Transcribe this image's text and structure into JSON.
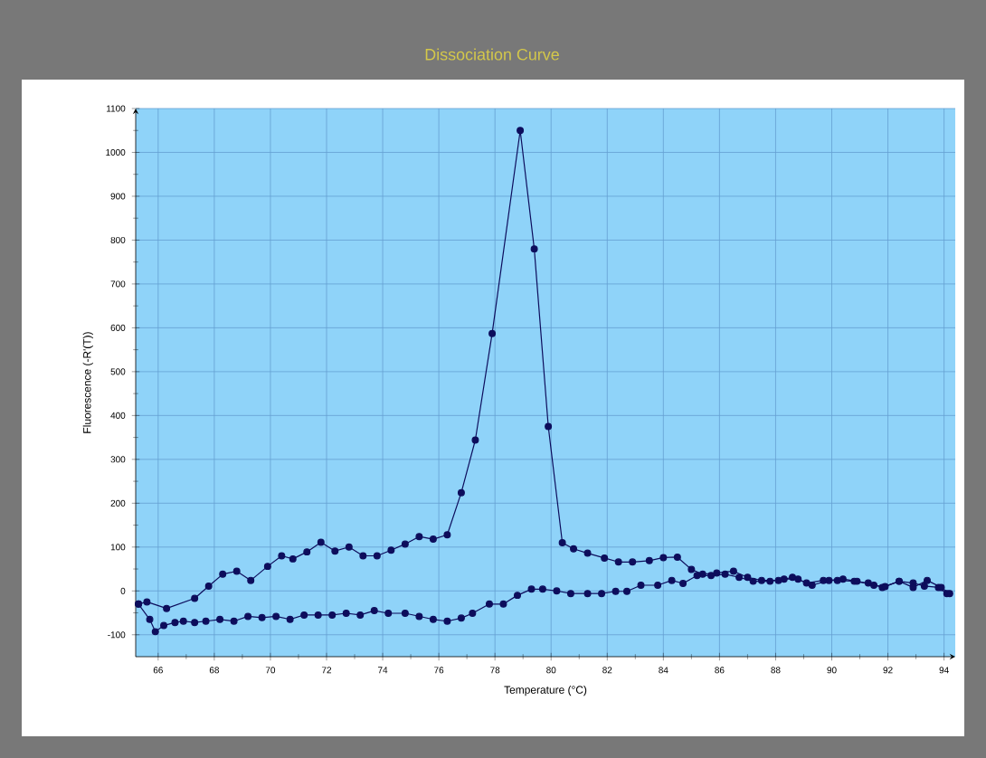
{
  "chart_data": {
    "type": "line",
    "title": "Dissociation Curve",
    "xlabel": "Temperature (°C)",
    "ylabel": "Fluorescence (-R'(T))",
    "series": [
      {
        "color": "#0d0d5c",
        "x": [
          65.3,
          65.6,
          66.3,
          67.3,
          67.8,
          68.3,
          68.8,
          69.3,
          69.9,
          70.4,
          70.8,
          71.3,
          71.8,
          72.3,
          72.8,
          73.3,
          73.8,
          74.3,
          74.8,
          75.3,
          75.8,
          76.3,
          76.8,
          77.3,
          77.9,
          78.9,
          79.4,
          79.9,
          80.4,
          80.8,
          81.3,
          81.9,
          82.4,
          82.9,
          83.5,
          84.0,
          84.5,
          85.0,
          85.4,
          85.9,
          86.5,
          87.0,
          87.5,
          88.1,
          88.6,
          89.1,
          89.7,
          90.2,
          90.8,
          91.3,
          91.8,
          92.4,
          92.9,
          93.3,
          93.8,
          94.1
        ],
        "values": [
          -30,
          -25,
          -40,
          -17,
          11,
          38,
          45,
          24,
          56,
          80,
          73,
          89,
          111,
          91,
          100,
          80,
          80,
          93,
          107,
          124,
          118,
          128,
          224,
          344,
          587,
          1050,
          780,
          375,
          110,
          96,
          86,
          75,
          66,
          66,
          69,
          76,
          77,
          49,
          38,
          41,
          45,
          31,
          24,
          24,
          31,
          18,
          24,
          24,
          22,
          18,
          8,
          22,
          18,
          11,
          8,
          -6
        ]
      },
      {
        "color": "#0d0d5c",
        "x": [
          65.3,
          65.7,
          65.9,
          66.2,
          66.6,
          66.9,
          67.3,
          67.7,
          68.2,
          68.7,
          69.2,
          69.7,
          70.2,
          70.7,
          71.2,
          71.7,
          72.2,
          72.7,
          73.2,
          73.7,
          74.2,
          74.8,
          75.3,
          75.8,
          76.3,
          76.8,
          77.2,
          77.8,
          78.3,
          78.8,
          79.3,
          79.7,
          80.2,
          80.7,
          81.3,
          81.8,
          82.3,
          82.7,
          83.2,
          83.8,
          84.3,
          84.7,
          85.2,
          85.7,
          86.2,
          86.7,
          87.2,
          87.8,
          88.3,
          88.8,
          89.3,
          89.9,
          90.4,
          90.9,
          91.5,
          91.9,
          92.4,
          92.9,
          93.4,
          93.9,
          94.2
        ],
        "values": [
          -30,
          -65,
          -93,
          -79,
          -72,
          -69,
          -72,
          -69,
          -65,
          -69,
          -58,
          -61,
          -58,
          -65,
          -55,
          -55,
          -55,
          -51,
          -55,
          -45,
          -51,
          -51,
          -58,
          -65,
          -69,
          -62,
          -51,
          -30,
          -30,
          -10,
          4,
          4,
          0,
          -6,
          -6,
          -6,
          -1,
          -1,
          13,
          13,
          24,
          17,
          35,
          35,
          38,
          31,
          22,
          22,
          27,
          27,
          13,
          24,
          27,
          22,
          13,
          10,
          22,
          8,
          24,
          8,
          -6
        ]
      }
    ],
    "xlim": [
      65.2,
      94.4
    ],
    "ylim": [
      -150,
      1100
    ],
    "xticks": [
      66,
      68,
      70,
      72,
      74,
      76,
      78,
      80,
      82,
      84,
      86,
      88,
      90,
      92,
      94
    ],
    "yticks": [
      -100,
      0,
      100,
      200,
      300,
      400,
      500,
      600,
      700,
      800,
      900,
      1000,
      1100
    ],
    "grid": true,
    "marker": "circle",
    "line_style": "solid"
  }
}
